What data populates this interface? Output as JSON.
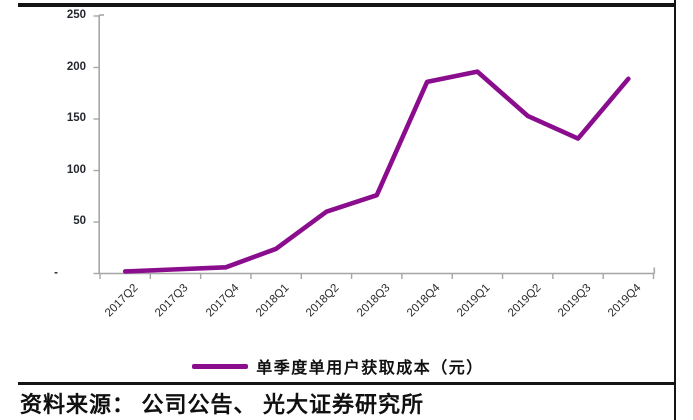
{
  "chart_data": {
    "type": "line",
    "categories": [
      "2017Q2",
      "2017Q3",
      "2017Q4",
      "2018Q1",
      "2018Q2",
      "2018Q3",
      "2018Q4",
      "2019Q1",
      "2019Q2",
      "2019Q3",
      "2019Q4"
    ],
    "series": [
      {
        "name": "单季度单用户获取成本（元）",
        "color": "#8A0D8D",
        "values": [
          2,
          4,
          6,
          24,
          60,
          76,
          186,
          196,
          153,
          131,
          189
        ]
      }
    ],
    "title": "",
    "xlabel": "",
    "ylabel": "",
    "ylim": [
      0,
      250
    ],
    "y_ticks": [
      0,
      50,
      100,
      150,
      200,
      250
    ],
    "y_tick_labels": [
      "-",
      "50",
      "100",
      "150",
      "200",
      "250"
    ],
    "grid": false,
    "legend_position": "bottom-center"
  },
  "legend": {
    "label": "单季度单用户获取成本（元）"
  },
  "source": {
    "text": "资料来源： 公司公告、 光大证券研究所"
  },
  "colors": {
    "line": "#8A0D8D",
    "axis": "#A6A6A6",
    "rule": "#141414",
    "tick_text": "#25282e"
  }
}
